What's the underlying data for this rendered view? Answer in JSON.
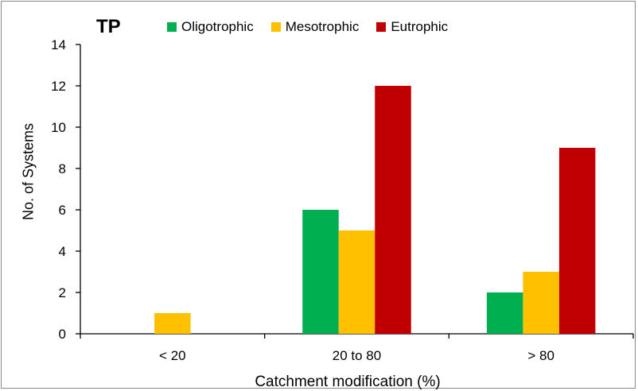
{
  "chart_data": {
    "type": "bar",
    "title": "TP",
    "xlabel": "Catchment modification (%)",
    "ylabel": "No. of Systems",
    "categories": [
      "< 20",
      "20 to 80",
      "> 80"
    ],
    "series": [
      {
        "name": "Oligotrophic",
        "color": "#00b050",
        "values": [
          0,
          6,
          2
        ]
      },
      {
        "name": "Mesotrophic",
        "color": "#ffc000",
        "values": [
          1,
          5,
          3
        ]
      },
      {
        "name": "Eutrophic",
        "color": "#c00000",
        "values": [
          0,
          12,
          9
        ]
      }
    ],
    "ylim": [
      0,
      14
    ],
    "yticks": [
      0,
      2,
      4,
      6,
      8,
      10,
      12,
      14
    ],
    "grid": false,
    "legend_position": "top"
  }
}
